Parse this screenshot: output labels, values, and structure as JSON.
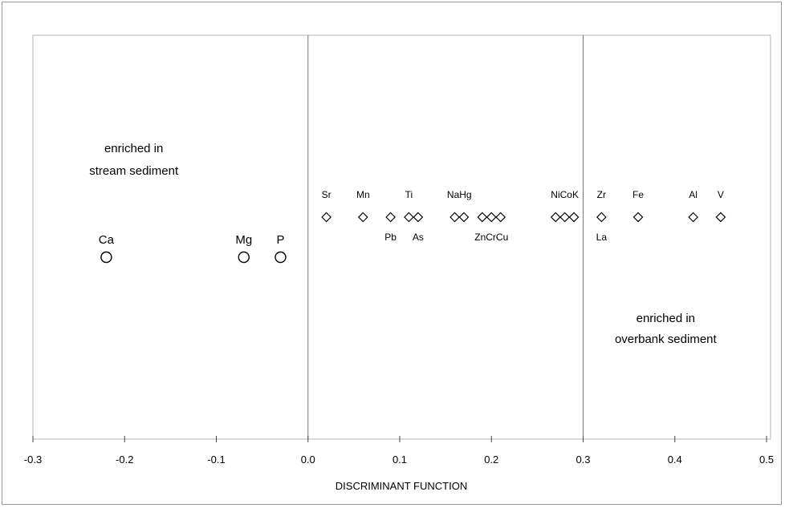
{
  "chart_data": {
    "type": "scatter",
    "title": "",
    "xlabel": "DISCRIMINANT FUNCTION",
    "ylabel": "",
    "xlim": [
      -0.3,
      0.5
    ],
    "x_ticks": [
      "-0.3",
      "-0.2",
      "-0.1",
      "0.0",
      "0.1",
      "0.2",
      "0.3",
      "0.4",
      "0.5"
    ],
    "x_tick_values": [
      -0.3,
      -0.2,
      -0.1,
      0.0,
      0.1,
      0.2,
      0.3,
      0.4,
      0.5
    ],
    "grid": false,
    "reference_lines": [
      0.0,
      0.3
    ],
    "annotations": [
      {
        "text": "enriched in",
        "x": -0.19
      },
      {
        "text": "stream sediment",
        "x": -0.19
      },
      {
        "text": "enriched in",
        "x": 0.39
      },
      {
        "text": "overbank sediment",
        "x": 0.39
      }
    ],
    "series": [
      {
        "marker": "circle",
        "points": [
          {
            "label": "Ca",
            "x": -0.22
          },
          {
            "label": "Mg",
            "x": -0.07
          },
          {
            "label": "P",
            "x": -0.03
          }
        ]
      },
      {
        "marker": "diamond",
        "points": [
          {
            "label": "Sr",
            "x": 0.02,
            "label_pos": "above"
          },
          {
            "label": "Mn",
            "x": 0.06,
            "label_pos": "above"
          },
          {
            "label": "Pb",
            "x": 0.09,
            "label_pos": "below"
          },
          {
            "label": "Ti",
            "x": 0.11,
            "label_pos": "above"
          },
          {
            "label": "As",
            "x": 0.12,
            "label_pos": "below"
          },
          {
            "label": "Na",
            "x": 0.16,
            "label_pos": "above"
          },
          {
            "label": "Hg",
            "x": 0.17,
            "label_pos": "above"
          },
          {
            "label": "Zn",
            "x": 0.19,
            "label_pos": "below"
          },
          {
            "label": "Cr",
            "x": 0.2,
            "label_pos": "below"
          },
          {
            "label": "Cu",
            "x": 0.21,
            "label_pos": "below"
          },
          {
            "label": "Ni",
            "x": 0.27,
            "label_pos": "above"
          },
          {
            "label": "Co",
            "x": 0.28,
            "label_pos": "above"
          },
          {
            "label": "K",
            "x": 0.29,
            "label_pos": "above"
          },
          {
            "label": "Zr",
            "x": 0.32,
            "label_pos": "above"
          },
          {
            "label": "La",
            "x": 0.32,
            "label_pos": "below"
          },
          {
            "label": "Fe",
            "x": 0.36,
            "label_pos": "above"
          },
          {
            "label": "Al",
            "x": 0.42,
            "label_pos": "above"
          },
          {
            "label": "V",
            "x": 0.45,
            "label_pos": "above"
          }
        ]
      }
    ]
  }
}
